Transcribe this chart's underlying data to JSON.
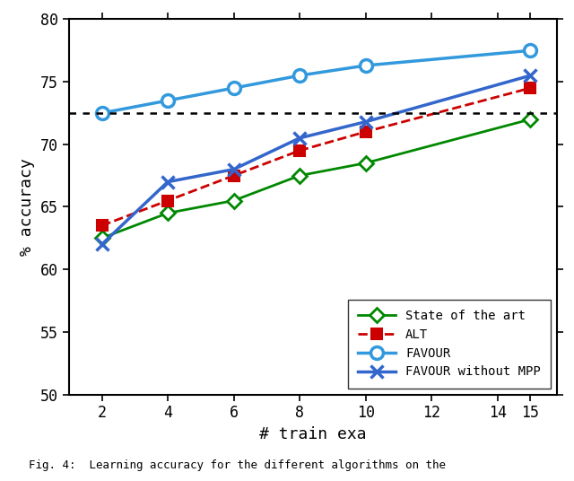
{
  "x": [
    2,
    4,
    6,
    8,
    10,
    15
  ],
  "state_of_art": [
    62.5,
    64.5,
    65.5,
    67.5,
    68.5,
    72.0
  ],
  "alt": [
    63.5,
    65.5,
    67.5,
    69.5,
    71.0,
    74.5
  ],
  "favour": [
    72.5,
    73.5,
    74.5,
    75.5,
    76.3,
    77.5
  ],
  "favour_no_mpp": [
    62.0,
    67.0,
    68.0,
    70.5,
    71.8,
    75.5
  ],
  "dotted_line_y": 72.5,
  "xlim": [
    1.0,
    15.8
  ],
  "ylim": [
    50,
    80
  ],
  "xticks": [
    2,
    4,
    6,
    8,
    10,
    12,
    14,
    15
  ],
  "yticks": [
    50,
    55,
    60,
    65,
    70,
    75,
    80
  ],
  "xlabel": "# train exa",
  "ylabel": "% accuracy",
  "color_sota": "#008800",
  "color_alt": "#cc0000",
  "color_favour": "#3399dd",
  "color_favour_no_mpp": "#3366cc",
  "legend_labels": [
    "State of the art",
    "ALT",
    "FAVOUR",
    "FAVOUR without MPP"
  ],
  "figsize": [
    6.4,
    5.36
  ],
  "dpi": 100,
  "caption": "Fig. 4:  Learning accuracy for the different algorithms on the"
}
